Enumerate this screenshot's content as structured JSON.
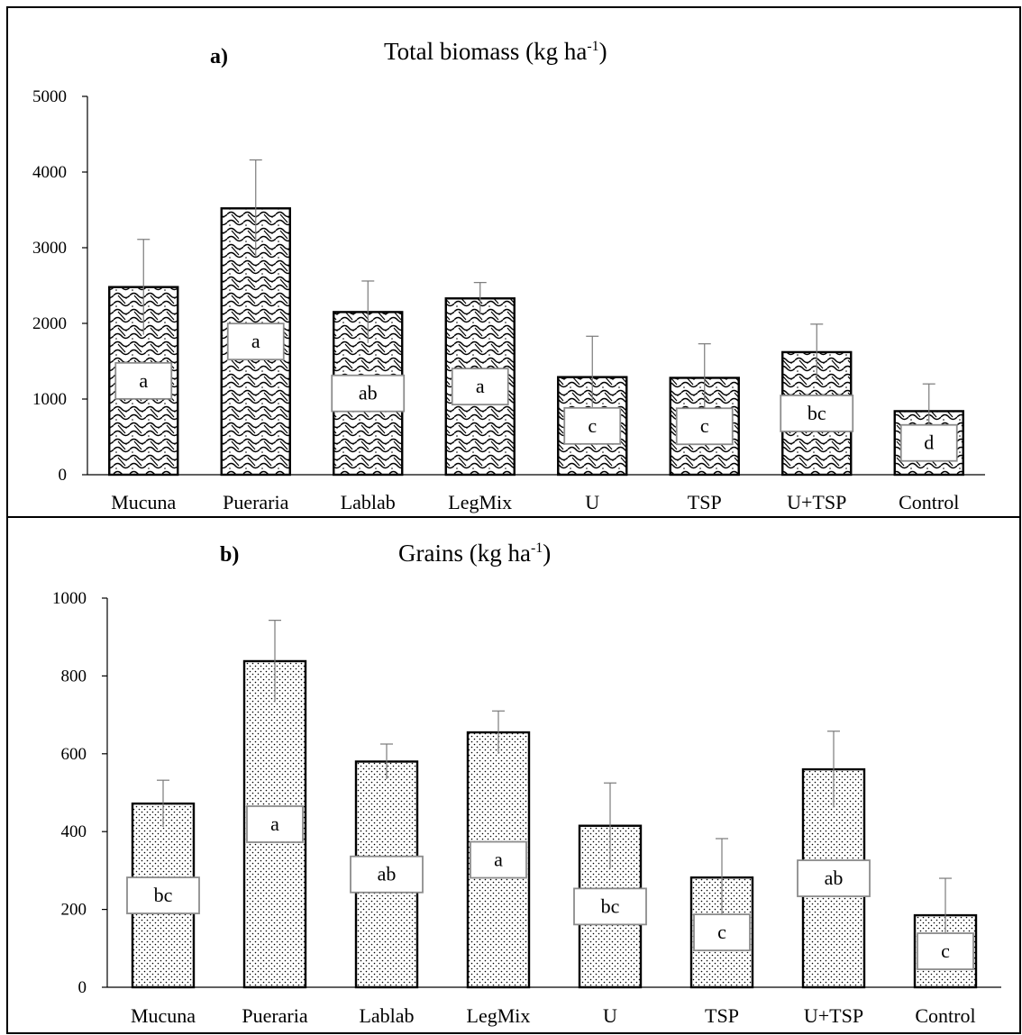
{
  "chart_data": [
    {
      "type": "bar",
      "panel_label": "a)",
      "title": "Total biomass (kg ha",
      "title_superscript": "-1",
      "title_close": ")",
      "categories": [
        "Mucuna",
        "Pueraria",
        "Lablab",
        "LegMix",
        "U",
        "TSP",
        "U+TSP",
        "Control"
      ],
      "values": [
        2480,
        3520,
        2150,
        2330,
        1290,
        1280,
        1620,
        840
      ],
      "error": [
        630,
        640,
        410,
        210,
        540,
        450,
        370,
        360
      ],
      "letters": [
        "a",
        "a",
        "ab",
        "a",
        "c",
        "c",
        "bc",
        "d"
      ],
      "ylim": [
        0,
        5000
      ],
      "yticks": [
        "0",
        "1000",
        "2000",
        "3000",
        "4000",
        "5000"
      ],
      "pattern": "wave-crosshatch",
      "grid": false,
      "legend": "none"
    },
    {
      "type": "bar",
      "panel_label": "b)",
      "title": "Grains (kg ha",
      "title_superscript": "-1",
      "title_close": ")",
      "categories": [
        "Mucuna",
        "Pueraria",
        "Lablab",
        "LegMix",
        "U",
        "TSP",
        "U+TSP",
        "Control"
      ],
      "values": [
        472,
        838,
        580,
        655,
        415,
        282,
        560,
        185
      ],
      "error": [
        60,
        105,
        45,
        55,
        110,
        100,
        98,
        95
      ],
      "letters": [
        "bc",
        "a",
        "ab",
        "a",
        "bc",
        "c",
        "ab",
        "c"
      ],
      "ylim": [
        0,
        1000
      ],
      "yticks": [
        "0",
        "200",
        "400",
        "600",
        "800",
        "1000"
      ],
      "pattern": "stipple",
      "grid": false,
      "legend": "none"
    }
  ]
}
